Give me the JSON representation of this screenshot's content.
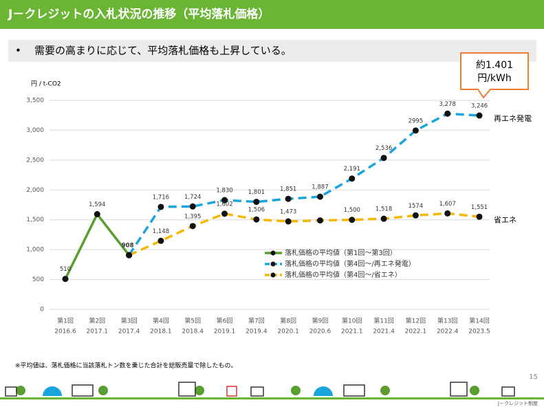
{
  "header": {
    "title": "J－クレジットの入札状況の推移（平均落札価格）",
    "bullet": "需要の高まりに応じて、平均落札価格も上昇している。"
  },
  "chart_data": {
    "type": "line",
    "y_label": "円 / t-CO2",
    "categories": [
      [
        "第1回",
        "2016.6"
      ],
      [
        "第2回",
        "2017.1"
      ],
      [
        "第3回",
        "2017.4"
      ],
      [
        "第4回",
        "2018.1"
      ],
      [
        "第5回",
        "2018.4"
      ],
      [
        "第6回",
        "2019.1"
      ],
      [
        "第7回",
        "2019.4"
      ],
      [
        "第8回",
        "2020.1"
      ],
      [
        "第9回",
        "2020.6"
      ],
      [
        "第10回",
        "2021.1"
      ],
      [
        "第11回",
        "2021.4"
      ],
      [
        "第12回",
        "2022.1"
      ],
      [
        "第13回",
        "2022.4"
      ],
      [
        "第14回",
        "2023.5"
      ]
    ],
    "series": [
      {
        "name": "落札価格の平均値（第1回～第3回）",
        "color": "#5a9e2f",
        "dashed": false,
        "values": [
          510,
          1594,
          908,
          null,
          null,
          null,
          null,
          null,
          null,
          null,
          null,
          null,
          null,
          null
        ],
        "value_labels": [
          "510",
          "1,594",
          "908",
          null,
          null,
          null,
          null,
          null,
          null,
          null,
          null,
          null,
          null,
          null
        ]
      },
      {
        "name": "落札価格の平均値（第4回～/再エネ発電）",
        "color": "#1aa6dc",
        "dashed": true,
        "end_label": "再エネ発電",
        "values": [
          null,
          null,
          908,
          1716,
          1724,
          1830,
          1801,
          1851,
          1887,
          2191,
          2536,
          2995,
          3278,
          3246
        ],
        "value_labels": [
          null,
          null,
          null,
          "1,716",
          "1,724",
          "1,830",
          "1,801",
          "1,851",
          "1,887",
          "2,191",
          "2,536",
          "2995",
          "3,278",
          "3,246"
        ]
      },
      {
        "name": "落札価格の平均値（第4回～/省エネ）",
        "color": "#f5b800",
        "dashed": true,
        "end_label": "省エネ",
        "values": [
          null,
          null,
          908,
          1148,
          1395,
          1602,
          1506,
          1473,
          1490,
          1500,
          1518,
          1574,
          1607,
          1551
        ],
        "value_labels": [
          null,
          null,
          null,
          "1,148",
          "1,395",
          "1,602",
          "1,506",
          "1,473",
          null,
          "1,500",
          "1,518",
          "1574",
          "1,607",
          "1,551"
        ]
      }
    ],
    "ylim": [
      0,
      3500
    ],
    "yticks": [
      0,
      500,
      {
        "value": 1000,
        "label": "1,000"
      },
      {
        "value": 1500,
        "label": "1,500"
      },
      {
        "value": 2000,
        "label": "2,000"
      },
      {
        "value": 2500,
        "label": "2,500"
      },
      {
        "value": 3000,
        "label": "3,000"
      },
      {
        "value": 3500,
        "label": "3,500"
      }
    ],
    "grid": true,
    "callout": [
      "約1.401",
      "円/kWh"
    ]
  },
  "footer": {
    "note": "※平均値は、落札価格に当該落札トン数を乗じた合計を総販売量で除したもの。",
    "page": "15",
    "brand": "J－クレジット制度"
  }
}
